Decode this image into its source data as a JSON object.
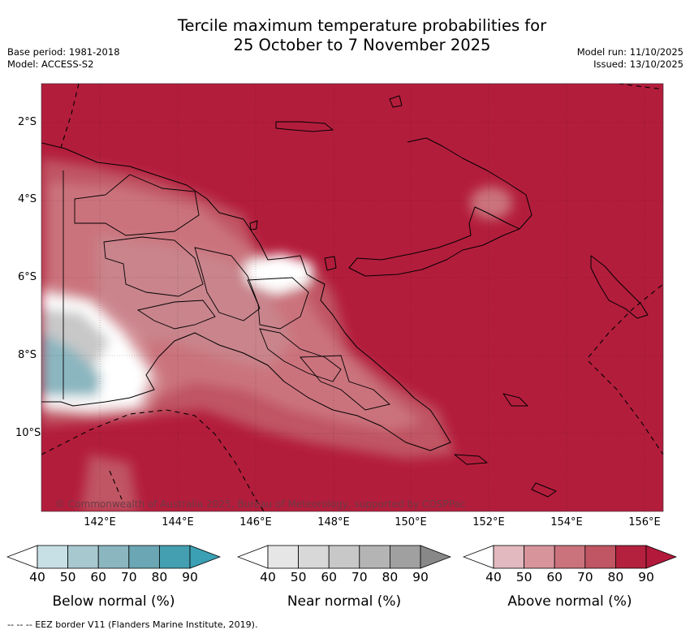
{
  "header": {
    "title_line1": "Tercile maximum temperature probabilities for",
    "title_line2": "25 October to 7 November 2025",
    "base_period": "Base period: 1981-2018",
    "model": "Model: ACCESS-S2",
    "model_run": "Model run: 11/10/2025",
    "issued": "Issued: 13/10/2025"
  },
  "map": {
    "latitude_labels": [
      "2°S",
      "4°S",
      "6°S",
      "8°S",
      "10°S"
    ],
    "longitude_labels": [
      "142°E",
      "144°E",
      "146°E",
      "148°E",
      "150°E",
      "152°E",
      "154°E",
      "156°E"
    ],
    "copyright": "© Commonwealth of Australia 2025, Bureau of Meteorology, supported by COSPPac"
  },
  "legends": [
    {
      "label": "Below normal (%)",
      "ticks": [
        "40",
        "50",
        "60",
        "70",
        "80",
        "90"
      ],
      "colors": [
        "#ffffff",
        "#c7e0e6",
        "#a7c8cf",
        "#8bb6c0",
        "#6aa6b3",
        "#449fb0",
        "#3ba0b3"
      ]
    },
    {
      "label": "Near normal (%)",
      "ticks": [
        "40",
        "50",
        "60",
        "70",
        "80",
        "90"
      ],
      "colors": [
        "#ffffff",
        "#e6e6e6",
        "#d8d8d8",
        "#c8c8c8",
        "#b4b4b4",
        "#a0a0a0",
        "#888888"
      ]
    },
    {
      "label": "Above normal (%)",
      "ticks": [
        "40",
        "50",
        "60",
        "70",
        "80",
        "90"
      ],
      "colors": [
        "#ffffff",
        "#e2b9be",
        "#d7949b",
        "#cb737d",
        "#c05563",
        "#b3213e",
        "#b3193b"
      ]
    }
  ],
  "footer": {
    "eez_note": "--  --  -- EEZ border V11 (Flanders Marine Institute, 2019)."
  }
}
